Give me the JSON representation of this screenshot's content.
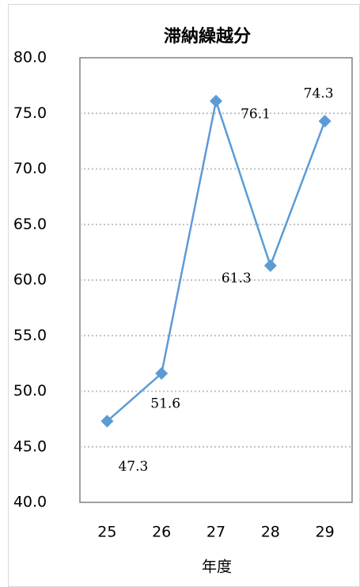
{
  "chart_data": {
    "type": "line",
    "title": "滞納繰越分",
    "x_label": "年度",
    "categories": [
      "25",
      "26",
      "27",
      "28",
      "29"
    ],
    "series": [
      {
        "name": "滞納繰越分",
        "color": "#5b9bd5",
        "values": [
          47.3,
          51.6,
          76.1,
          61.3,
          74.3
        ]
      }
    ],
    "ylim": [
      40,
      80
    ],
    "yticks": [
      {
        "value": 40,
        "label": "40.0"
      },
      {
        "value": 45,
        "label": "45.0"
      },
      {
        "value": 50,
        "label": "50.0"
      },
      {
        "value": 55,
        "label": "55.0"
      },
      {
        "value": 60,
        "label": "60.0"
      },
      {
        "value": 65,
        "label": "65.0"
      },
      {
        "value": 70,
        "label": "70.0"
      },
      {
        "value": 75,
        "label": "75.0"
      },
      {
        "value": 80,
        "label": "80.0"
      }
    ],
    "grid": true
  }
}
